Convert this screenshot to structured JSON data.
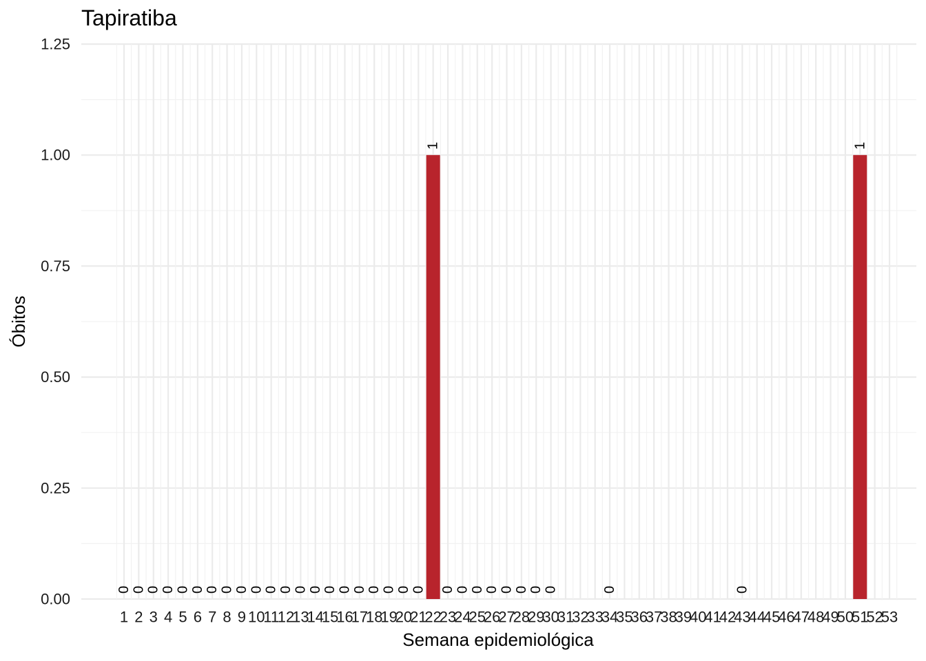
{
  "chart_data": {
    "type": "bar",
    "title": "Tapiratiba",
    "xlabel": "Semana epidemiológica",
    "ylabel": "Óbitos",
    "ylim": [
      0,
      1.25
    ],
    "yticks": [
      0,
      0.25,
      0.5,
      0.75,
      1.0,
      1.25
    ],
    "ytick_labels": [
      "0.00",
      "0.25",
      "0.50",
      "0.75",
      "1.00",
      "1.25"
    ],
    "categories": [
      "1",
      "2",
      "3",
      "4",
      "5",
      "6",
      "7",
      "8",
      "9",
      "10",
      "11",
      "12",
      "13",
      "14",
      "15",
      "16",
      "17",
      "18",
      "19",
      "20",
      "21",
      "22",
      "23",
      "24",
      "25",
      "26",
      "27",
      "28",
      "29",
      "30",
      "31",
      "32",
      "33",
      "34",
      "35",
      "36",
      "37",
      "38",
      "39",
      "40",
      "41",
      "42",
      "43",
      "44",
      "45",
      "46",
      "47",
      "48",
      "49",
      "50",
      "51",
      "52",
      "53"
    ],
    "values": [
      0,
      0,
      0,
      0,
      0,
      0,
      0,
      0,
      0,
      0,
      0,
      0,
      0,
      0,
      0,
      0,
      0,
      0,
      0,
      0,
      0,
      1,
      0,
      0,
      0,
      0,
      0,
      0,
      0,
      0,
      null,
      null,
      null,
      0,
      null,
      null,
      null,
      null,
      null,
      null,
      null,
      null,
      0,
      null,
      null,
      null,
      null,
      null,
      null,
      null,
      1,
      null,
      null
    ],
    "bar_color": "#b8242c",
    "grid": true,
    "legend": "none"
  }
}
